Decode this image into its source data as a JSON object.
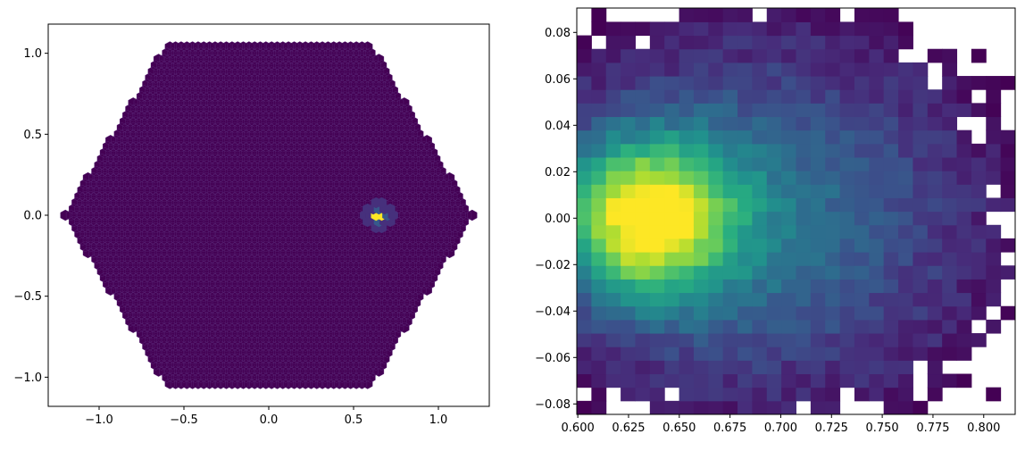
{
  "chart_data": [
    {
      "type": "heatmap",
      "subtype": "hexbin",
      "colormap": "viridis",
      "x_ticks": [
        -1.0,
        -0.5,
        0.0,
        0.5,
        1.0
      ],
      "x_tick_labels": [
        "−1.0",
        "−0.5",
        "0.0",
        "0.5",
        "1.0"
      ],
      "y_ticks": [
        -1.0,
        -0.5,
        0.0,
        0.5,
        1.0
      ],
      "y_tick_labels": [
        "−1.0",
        "−0.5",
        "0.0",
        "0.5",
        "1.0"
      ],
      "xlim": [
        -1.3,
        1.3
      ],
      "ylim": [
        -1.18,
        1.18
      ],
      "hex_extent": {
        "x": [
          -1.2,
          1.2
        ],
        "y": [
          -1.05,
          1.05
        ]
      },
      "hot_spot": {
        "x": 0.65,
        "y": 0.0
      },
      "grid": false
    },
    {
      "type": "heatmap",
      "subtype": "hist2d",
      "colormap": "viridis",
      "x_ticks": [
        0.6,
        0.625,
        0.65,
        0.675,
        0.7,
        0.725,
        0.75,
        0.775,
        0.8
      ],
      "x_tick_labels": [
        "0.600",
        "0.625",
        "0.650",
        "0.675",
        "0.700",
        "0.725",
        "0.750",
        "0.775",
        "0.800"
      ],
      "y_ticks": [
        -0.08,
        -0.06,
        -0.04,
        -0.02,
        0.0,
        0.02,
        0.04,
        0.06,
        0.08
      ],
      "y_tick_labels": [
        "−0.08",
        "−0.06",
        "−0.04",
        "−0.02",
        "0.00",
        "0.02",
        "0.04",
        "0.06",
        "0.08"
      ],
      "xlim": [
        0.5995,
        0.8155
      ],
      "ylim": [
        -0.0845,
        0.0905
      ],
      "bins": {
        "x0": 0.5995,
        "dx": 0.0072,
        "y0": -0.0845,
        "dy": 0.00583,
        "nx": 30,
        "ny": 30
      },
      "peak": {
        "x": 0.633,
        "y": 0.0
      },
      "grid": false
    }
  ]
}
